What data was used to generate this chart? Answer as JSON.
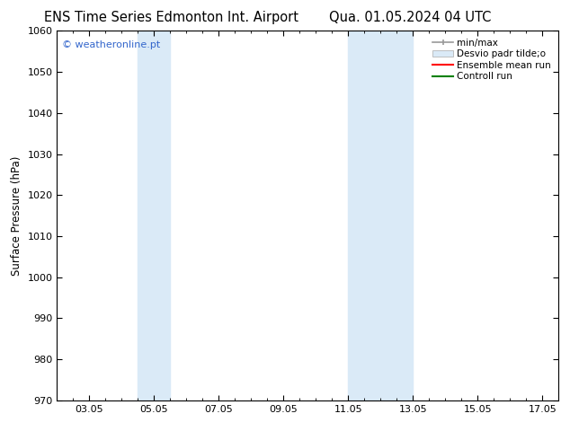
{
  "title_left": "ENS Time Series Edmonton Int. Airport",
  "title_right": "Qua. 01.05.2024 04 UTC",
  "ylabel": "Surface Pressure (hPa)",
  "ylim": [
    970,
    1060
  ],
  "yticks": [
    970,
    980,
    990,
    1000,
    1010,
    1020,
    1030,
    1040,
    1050,
    1060
  ],
  "xlim": [
    2.0,
    17.5
  ],
  "xtick_labels": [
    "03.05",
    "05.05",
    "07.05",
    "09.05",
    "11.05",
    "13.05",
    "15.05",
    "17.05"
  ],
  "xtick_positions": [
    3,
    5,
    7,
    9,
    11,
    13,
    15,
    17
  ],
  "shaded_bands": [
    {
      "x_start": 4.5,
      "x_end": 5.5
    },
    {
      "x_start": 11.0,
      "x_end": 13.0
    }
  ],
  "shaded_color": "#daeaf7",
  "watermark": "© weatheronline.pt",
  "watermark_color": "#3366cc",
  "legend_entries": [
    {
      "label": "min/max",
      "color": "#aaaaaa"
    },
    {
      "label": "Desvio padr tilde;o",
      "color": "#daeaf7"
    },
    {
      "label": "Ensemble mean run",
      "color": "#ff0000"
    },
    {
      "label": "Controll run",
      "color": "#008000"
    }
  ],
  "bg_color": "#ffffff",
  "plot_bg_color": "#ffffff",
  "title_fontsize": 10.5,
  "ylabel_fontsize": 8.5,
  "tick_fontsize": 8,
  "legend_fontsize": 7.5,
  "watermark_fontsize": 8
}
